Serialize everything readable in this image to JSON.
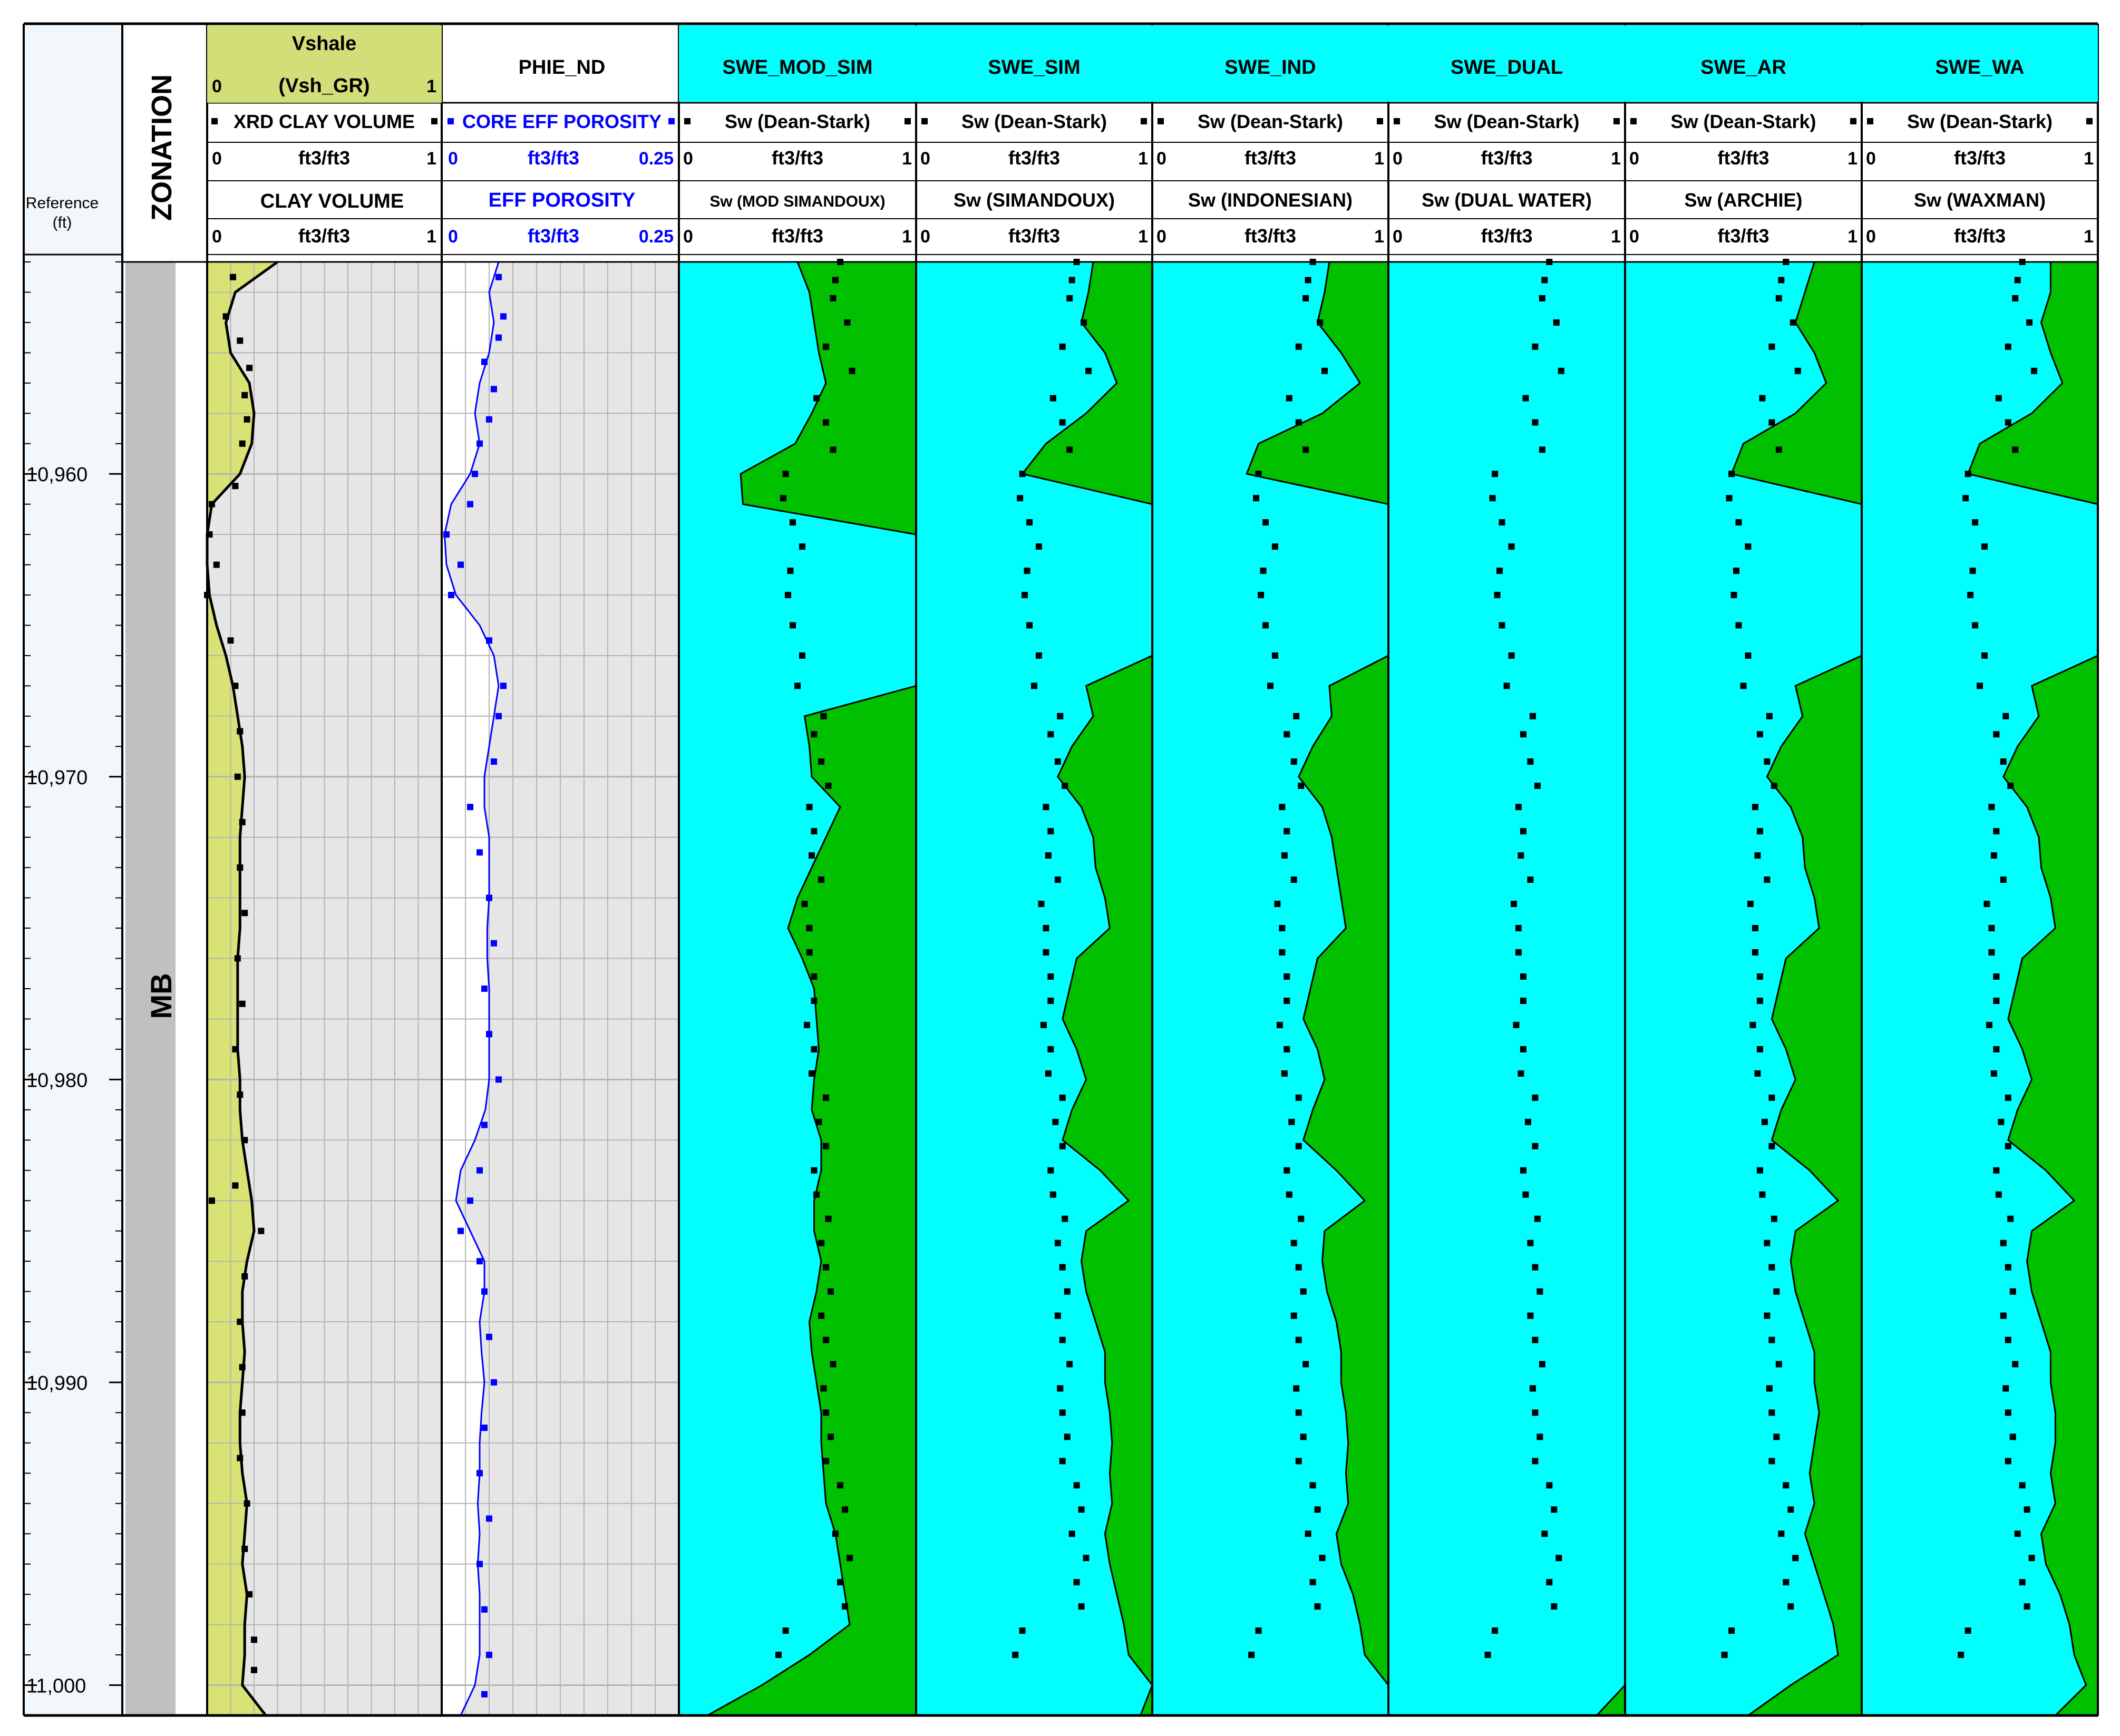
{
  "depth_track": {
    "label": "Reference\n(ft)",
    "ticks": [
      "10,960",
      "10,970",
      "10,980",
      "10,990",
      "11,000"
    ]
  },
  "zonation": {
    "title": "ZONATION",
    "zone": "MB"
  },
  "vshale": {
    "title": "Vshale",
    "curve_label": "(Vsh_GR)",
    "curve_min": "0",
    "curve_max": "1",
    "core_label": "XRD CLAY VOLUME",
    "core_unit": "ft3/ft3",
    "core_min": "0",
    "core_max": "1",
    "second_label": "CLAY VOLUME",
    "second_unit": "ft3/ft3",
    "second_min": "0",
    "second_max": "1"
  },
  "phie": {
    "title": "PHIE_ND",
    "core_label": "CORE EFF POROSITY",
    "core_unit": "ft3/ft3",
    "core_min": "0",
    "core_max": "0.25",
    "curve_label": "EFF POROSITY",
    "curve_unit": "ft3/ft3",
    "curve_min": "0",
    "curve_max": "0.25"
  },
  "sw_tracks": [
    {
      "title": "SWE_MOD_SIM",
      "core_label": "Sw (Dean-Stark)",
      "unit": "ft3/ft3",
      "min": "0",
      "max": "1",
      "curve_label": "Sw (MOD SIMANDOUX)"
    },
    {
      "title": "SWE_SIM",
      "core_label": "Sw (Dean-Stark)",
      "unit": "ft3/ft3",
      "min": "0",
      "max": "1",
      "curve_label": "Sw (SIMANDOUX)"
    },
    {
      "title": "SWE_IND",
      "core_label": "Sw (Dean-Stark)",
      "unit": "ft3/ft3",
      "min": "0",
      "max": "1",
      "curve_label": "Sw (INDONESIAN)"
    },
    {
      "title": "SWE_DUAL",
      "core_label": "Sw (Dean-Stark)",
      "unit": "ft3/ft3",
      "min": "0",
      "max": "1",
      "curve_label": "Sw (DUAL WATER)"
    },
    {
      "title": "SWE_AR",
      "core_label": "Sw (Dean-Stark)",
      "unit": "ft3/ft3",
      "min": "0",
      "max": "1",
      "curve_label": "Sw (ARCHIE)"
    },
    {
      "title": "SWE_WA",
      "core_label": "Sw (Dean-Stark)",
      "unit": "ft3/ft3",
      "min": "0",
      "max": "1",
      "curve_label": "Sw (WAXMAN)"
    }
  ],
  "colors": {
    "vshale_fill": "#d9e274",
    "vshale_header": "#d2de78",
    "grid_bg": "#e6e6e6",
    "water": "#00ffff",
    "hydrocarbon": "#00c000",
    "porosity_curve": "#0000ff",
    "zone_fill": "#c0c0c0",
    "depth_bg": "#f2f7fb"
  },
  "chart_data": {
    "type": "well_log",
    "depth_range": [
      10953,
      11001
    ],
    "depth_unit": "ft",
    "vsh_gr": {
      "depth": [
        10953,
        10954,
        10955,
        10956,
        10957,
        10958,
        10959,
        10960,
        10961,
        10962,
        10963,
        10964,
        10965,
        10966,
        10967,
        10968,
        10969,
        10970,
        10971,
        10972,
        10973,
        10974,
        10975,
        10976,
        10977,
        10978,
        10979,
        10980,
        10981,
        10982,
        10983,
        10984,
        10985,
        10986,
        10987,
        10988,
        10989,
        10990,
        10991,
        10992,
        10993,
        10994,
        10995,
        10996,
        10997,
        10998,
        10999,
        11000,
        11001
      ],
      "values": [
        0.3,
        0.12,
        0.08,
        0.1,
        0.18,
        0.2,
        0.19,
        0.14,
        0.02,
        0.0,
        0.0,
        0.01,
        0.04,
        0.08,
        0.11,
        0.13,
        0.15,
        0.16,
        0.15,
        0.14,
        0.14,
        0.14,
        0.14,
        0.13,
        0.13,
        0.13,
        0.13,
        0.14,
        0.14,
        0.15,
        0.17,
        0.19,
        0.2,
        0.17,
        0.15,
        0.15,
        0.16,
        0.15,
        0.14,
        0.14,
        0.15,
        0.17,
        0.16,
        0.15,
        0.17,
        0.16,
        0.16,
        0.15,
        0.25
      ]
    },
    "xrd_clay_volume": {
      "depth": [
        10953.5,
        10954.8,
        10955.6,
        10956.5,
        10957.4,
        10958.2,
        10959,
        10960.4,
        10961,
        10962,
        10963,
        10964,
        10965.5,
        10967,
        10968.5,
        10970,
        10971.5,
        10973,
        10974.5,
        10976,
        10977.5,
        10979,
        10980.5,
        10982,
        10983.5,
        10984,
        10985,
        10986.5,
        10988,
        10989.5,
        10991,
        10992.5,
        10994,
        10995.5,
        10997,
        10998.5,
        10999.5
      ],
      "values": [
        0.11,
        0.08,
        0.14,
        0.18,
        0.16,
        0.17,
        0.15,
        0.12,
        0.02,
        0.01,
        0.04,
        0.0,
        0.1,
        0.12,
        0.14,
        0.13,
        0.15,
        0.14,
        0.16,
        0.13,
        0.15,
        0.12,
        0.14,
        0.16,
        0.12,
        0.02,
        0.23,
        0.16,
        0.14,
        0.15,
        0.15,
        0.14,
        0.17,
        0.16,
        0.18,
        0.2,
        0.2
      ]
    },
    "phie_nd": {
      "depth": [
        10953,
        10954,
        10955,
        10956,
        10957,
        10958,
        10959,
        10960,
        10961,
        10962,
        10963,
        10964,
        10965,
        10966,
        10967,
        10968,
        10969,
        10970,
        10971,
        10972,
        10973,
        10974,
        10975,
        10976,
        10977,
        10978,
        10979,
        10980,
        10981,
        10982,
        10983,
        10984,
        10985,
        10986,
        10987,
        10988,
        10989,
        10990,
        10991,
        10992,
        10993,
        10994,
        10995,
        10996,
        10997,
        10998,
        10999,
        11000,
        11001
      ],
      "values": [
        0.06,
        0.05,
        0.055,
        0.05,
        0.04,
        0.035,
        0.04,
        0.03,
        0.01,
        0.003,
        0.005,
        0.015,
        0.04,
        0.055,
        0.06,
        0.055,
        0.05,
        0.045,
        0.045,
        0.05,
        0.05,
        0.05,
        0.048,
        0.048,
        0.05,
        0.05,
        0.05,
        0.05,
        0.046,
        0.035,
        0.02,
        0.015,
        0.03,
        0.045,
        0.045,
        0.04,
        0.042,
        0.045,
        0.042,
        0.04,
        0.04,
        0.038,
        0.04,
        0.038,
        0.04,
        0.04,
        0.04,
        0.035,
        0.02
      ]
    },
    "core_eff_porosity": {
      "depth": [
        10953.5,
        10954.8,
        10955.5,
        10956.3,
        10957.2,
        10958.2,
        10959,
        10960,
        10961,
        10962,
        10963,
        10964,
        10965.5,
        10967,
        10968,
        10969.5,
        10971,
        10972.5,
        10974,
        10975.5,
        10977,
        10978.5,
        10980,
        10981.5,
        10983,
        10984,
        10985,
        10986,
        10987,
        10988.5,
        10990,
        10991.5,
        10993,
        10994.5,
        10996,
        10997.5,
        10999,
        11000.3
      ],
      "values": [
        0.06,
        0.065,
        0.06,
        0.045,
        0.055,
        0.05,
        0.04,
        0.035,
        0.03,
        0.005,
        0.02,
        0.01,
        0.05,
        0.065,
        0.06,
        0.055,
        0.03,
        0.04,
        0.05,
        0.055,
        0.045,
        0.05,
        0.06,
        0.045,
        0.04,
        0.03,
        0.02,
        0.04,
        0.045,
        0.05,
        0.055,
        0.045,
        0.04,
        0.05,
        0.04,
        0.045,
        0.05,
        0.045
      ]
    },
    "sw_core_dean_stark": {
      "depth": [
        10953,
        10953.6,
        10954.2,
        10955,
        10955.8,
        10956.6,
        10957.5,
        10958.3,
        10959.2,
        10960,
        10960.8,
        10961.6,
        10962.4,
        10963.2,
        10964,
        10965,
        10966,
        10967,
        10968,
        10968.6,
        10969.5,
        10970.3,
        10971,
        10971.8,
        10972.6,
        10973.4,
        10974.2,
        10975,
        10975.8,
        10976.6,
        10977.4,
        10978.2,
        10979,
        10979.8,
        10980.6,
        10981.4,
        10982.2,
        10983,
        10983.8,
        10984.6,
        10985.4,
        10986.2,
        10987,
        10987.8,
        10988.6,
        10989.4,
        10990.2,
        10991,
        10991.8,
        10992.6,
        10993.4,
        10994.2,
        10995,
        10995.8,
        10996.6,
        10997.4,
        10998.2,
        10999
      ],
      "values": [
        0.68,
        0.66,
        0.65,
        0.71,
        0.62,
        0.73,
        0.58,
        0.62,
        0.65,
        0.45,
        0.44,
        0.48,
        0.52,
        0.47,
        0.46,
        0.48,
        0.52,
        0.5,
        0.61,
        0.57,
        0.6,
        0.63,
        0.55,
        0.57,
        0.56,
        0.6,
        0.53,
        0.55,
        0.55,
        0.57,
        0.57,
        0.54,
        0.57,
        0.56,
        0.62,
        0.59,
        0.62,
        0.57,
        0.58,
        0.63,
        0.6,
        0.62,
        0.64,
        0.6,
        0.62,
        0.65,
        0.61,
        0.62,
        0.64,
        0.62,
        0.68,
        0.7,
        0.66,
        0.72,
        0.68,
        0.7,
        0.45,
        0.42
      ]
    },
    "sw_curves": {
      "depth": [
        10953,
        10954,
        10955,
        10956,
        10957,
        10958,
        10959,
        10960,
        10961,
        10962,
        10963,
        10964,
        10965,
        10966,
        10967,
        10968,
        10969,
        10970,
        10971,
        10972,
        10973,
        10974,
        10975,
        10976,
        10977,
        10978,
        10979,
        10980,
        10981,
        10982,
        10983,
        10984,
        10985,
        10986,
        10987,
        10988,
        10989,
        10990,
        10991,
        10992,
        10993,
        10994,
        10995,
        10996,
        10997,
        10998,
        10999,
        11000,
        11001
      ],
      "series": [
        {
          "name": "Sw (MOD SIMANDOUX)",
          "values": [
            0.5,
            0.55,
            0.57,
            0.59,
            0.62,
            0.56,
            0.49,
            0.26,
            0.27,
            1.0,
            1.0,
            1.0,
            1.0,
            1.0,
            1.0,
            0.53,
            0.55,
            0.56,
            0.68,
            0.62,
            0.56,
            0.5,
            0.46,
            0.52,
            0.57,
            0.58,
            0.59,
            0.57,
            0.56,
            0.6,
            0.6,
            0.57,
            0.57,
            0.6,
            0.58,
            0.55,
            0.56,
            0.58,
            0.6,
            0.6,
            0.61,
            0.62,
            0.66,
            0.68,
            0.7,
            0.72,
            0.55,
            0.35,
            0.12
          ]
        },
        {
          "name": "Sw (SIMANDOUX)",
          "values": [
            0.75,
            0.73,
            0.7,
            0.8,
            0.85,
            0.72,
            0.55,
            0.45,
            1.0,
            1.0,
            1.0,
            1.0,
            1.0,
            1.0,
            0.72,
            0.75,
            0.66,
            0.6,
            0.7,
            0.75,
            0.76,
            0.8,
            0.82,
            0.68,
            0.65,
            0.62,
            0.68,
            0.72,
            0.66,
            0.62,
            0.78,
            0.9,
            0.72,
            0.7,
            0.72,
            0.76,
            0.8,
            0.8,
            0.82,
            0.83,
            0.82,
            0.83,
            0.8,
            0.82,
            0.85,
            0.88,
            0.9,
            1.0,
            0.95
          ]
        },
        {
          "name": "Sw (INDONESIAN)",
          "values": [
            0.75,
            0.73,
            0.7,
            0.8,
            0.88,
            0.72,
            0.45,
            0.4,
            1.0,
            1.0,
            1.0,
            1.0,
            1.0,
            1.0,
            0.75,
            0.76,
            0.68,
            0.62,
            0.72,
            0.76,
            0.78,
            0.8,
            0.82,
            0.7,
            0.67,
            0.64,
            0.7,
            0.73,
            0.68,
            0.64,
            0.78,
            0.9,
            0.73,
            0.72,
            0.74,
            0.78,
            0.8,
            0.8,
            0.82,
            0.83,
            0.82,
            0.83,
            0.78,
            0.8,
            0.85,
            0.88,
            0.9,
            1.0,
            1.0
          ]
        },
        {
          "name": "Sw (DUAL WATER)",
          "values": [
            1,
            1,
            1,
            1,
            1,
            1,
            1,
            1,
            1,
            1,
            1,
            1,
            1,
            1,
            1,
            1,
            1,
            1,
            1,
            1,
            1,
            1,
            1,
            1,
            1,
            1,
            1,
            1,
            1,
            1,
            1,
            1,
            1,
            1,
            1,
            1,
            1,
            1,
            1,
            1,
            1,
            1,
            1,
            1,
            1,
            1,
            1,
            1,
            0.88
          ]
        },
        {
          "name": "Sw (ARCHIE)",
          "values": [
            0.8,
            0.76,
            0.72,
            0.8,
            0.85,
            0.72,
            0.5,
            0.45,
            1.0,
            1.0,
            1.0,
            1.0,
            1.0,
            1.0,
            0.72,
            0.75,
            0.66,
            0.6,
            0.7,
            0.75,
            0.76,
            0.8,
            0.82,
            0.68,
            0.65,
            0.62,
            0.68,
            0.72,
            0.66,
            0.62,
            0.78,
            0.9,
            0.72,
            0.7,
            0.72,
            0.76,
            0.8,
            0.8,
            0.82,
            0.8,
            0.78,
            0.8,
            0.76,
            0.8,
            0.84,
            0.88,
            0.9,
            0.7,
            0.52
          ]
        },
        {
          "name": "Sw (WAXMAN)",
          "values": [
            0.8,
            0.8,
            0.76,
            0.8,
            0.85,
            0.72,
            0.5,
            0.45,
            1.0,
            1.0,
            1.0,
            1.0,
            1.0,
            1.0,
            0.72,
            0.75,
            0.66,
            0.6,
            0.7,
            0.75,
            0.76,
            0.8,
            0.82,
            0.68,
            0.65,
            0.62,
            0.68,
            0.72,
            0.66,
            0.62,
            0.78,
            0.9,
            0.72,
            0.7,
            0.72,
            0.76,
            0.8,
            0.8,
            0.82,
            0.82,
            0.8,
            0.82,
            0.76,
            0.78,
            0.84,
            0.88,
            0.9,
            0.95,
            0.82
          ]
        }
      ]
    }
  }
}
